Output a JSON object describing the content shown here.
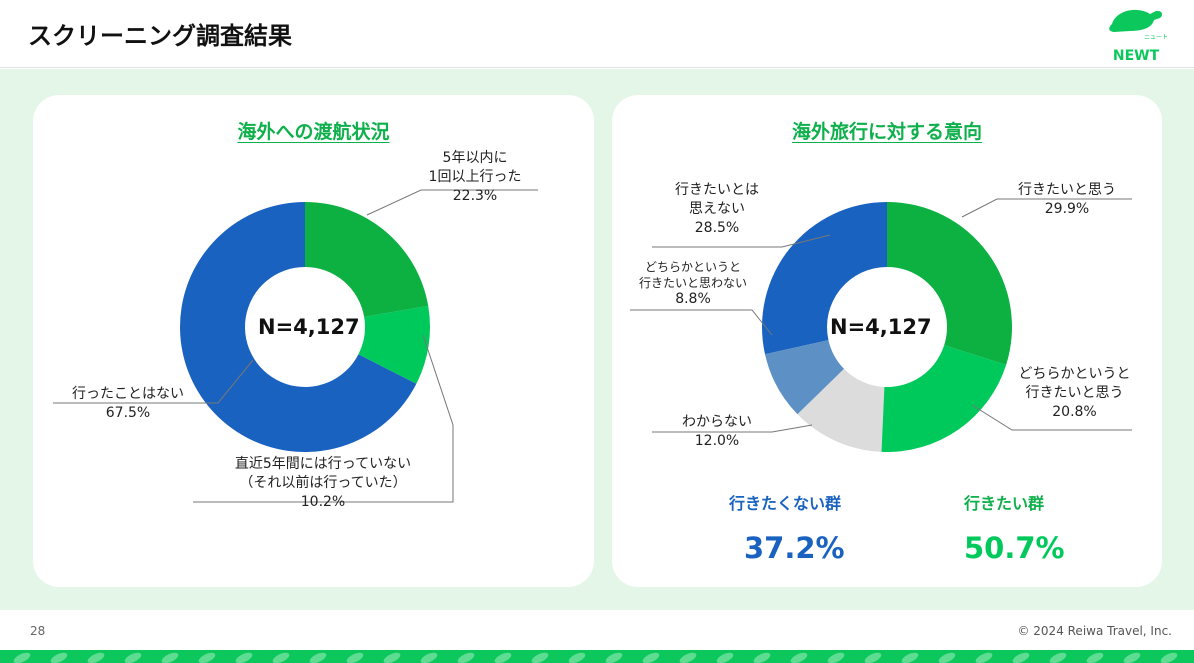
{
  "header": {
    "title": "スクリーニング調査結果",
    "logo_text": "NEWT",
    "logo_sub": "ニュート"
  },
  "colors": {
    "dark_green": "#0cb142",
    "light_green": "#00c95c",
    "blue": "#1a62c0",
    "steel_blue": "#5d90c4",
    "gray": "#dcdcdc",
    "accent": "#0db04a"
  },
  "left": {
    "title": "海外への渡航状況",
    "center": "N=4,127",
    "labels": [
      {
        "lines": [
          "5年以内に",
          "1回以上行った"
        ],
        "value": "22.3%"
      },
      {
        "lines": [
          "直近5年間には行っていない",
          "（それ以前は行っていた）"
        ],
        "value": "10.2%"
      },
      {
        "lines": [
          "行ったことはない"
        ],
        "value": "67.5%"
      }
    ]
  },
  "right": {
    "title": "海外旅行に対する意向",
    "center": "N=4,127",
    "labels": [
      {
        "lines": [
          "行きたいと思う"
        ],
        "value": "29.9%"
      },
      {
        "lines": [
          "どちらかというと",
          "行きたいと思う"
        ],
        "value": "20.8%"
      },
      {
        "lines": [
          "わからない"
        ],
        "value": "12.0%"
      },
      {
        "lines": [
          "どちらかというと",
          "行きたいと思わない"
        ],
        "value": "8.8%"
      },
      {
        "lines": [
          "行きたいとは",
          "思えない"
        ],
        "value": "28.5%"
      }
    ],
    "group_no": {
      "label": "行きたくない群",
      "value": "37.2%"
    },
    "group_yes": {
      "label": "行きたい群",
      "value": "50.7%"
    }
  },
  "chart_data": [
    {
      "type": "pie",
      "variant": "donut",
      "title": "海外への渡航状況",
      "categories": [
        "5年以内に1回以上行った",
        "直近5年間には行っていない（それ以前は行っていた）",
        "行ったことはない"
      ],
      "values": [
        22.3,
        10.2,
        67.5
      ],
      "colors": [
        "#0cb142",
        "#00c95c",
        "#1a62c0"
      ]
    },
    {
      "type": "pie",
      "variant": "donut",
      "title": "海外旅行に対する意向",
      "categories": [
        "行きたいと思う",
        "どちらかというと行きたいと思う",
        "わからない",
        "どちらかというと行きたいと思わない",
        "行きたいとは思えない"
      ],
      "values": [
        29.9,
        20.8,
        12.0,
        8.8,
        28.5
      ],
      "colors": [
        "#0cb142",
        "#00c95c",
        "#dcdcdc",
        "#5d90c4",
        "#1a62c0"
      ]
    }
  ],
  "footer": {
    "page": "28",
    "copyright": "© 2024 Reiwa Travel, Inc."
  }
}
